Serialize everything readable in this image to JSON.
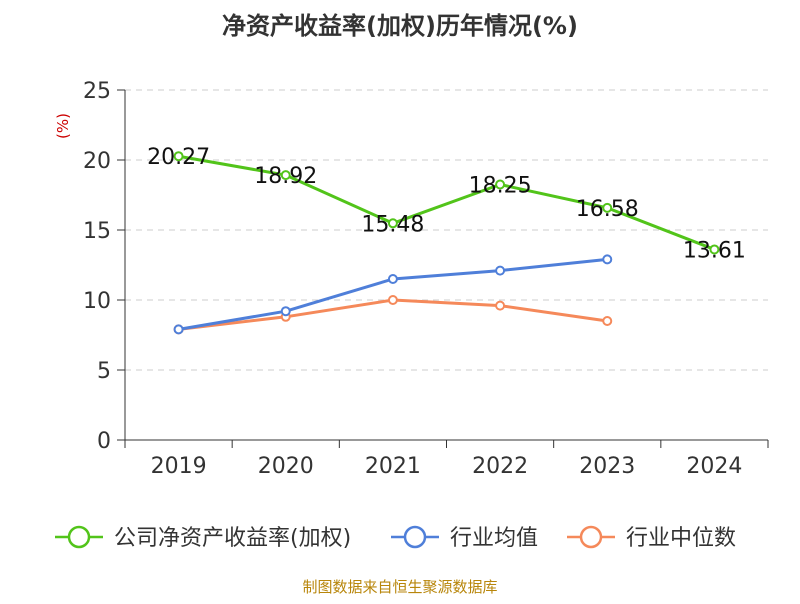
{
  "chart_data": {
    "type": "line",
    "title": "净资产收益率(加权)历年情况(%)",
    "ylabel": "(%)",
    "xlabel": "",
    "categories": [
      "2019",
      "2020",
      "2021",
      "2022",
      "2023",
      "2024"
    ],
    "ylim": [
      0,
      25
    ],
    "yticks": [
      0,
      5,
      10,
      15,
      20,
      25
    ],
    "grid": "horizontal dashed",
    "legend_position": "bottom",
    "series": [
      {
        "name": "公司净资产收益率(加权)",
        "color": "#52c41a",
        "values": [
          20.27,
          18.92,
          15.48,
          18.25,
          16.58,
          13.61
        ],
        "show_labels": true
      },
      {
        "name": "行业均值",
        "color": "#4f7fd9",
        "values": [
          7.9,
          9.2,
          11.5,
          12.1,
          12.9,
          null
        ],
        "show_labels": false
      },
      {
        "name": "行业中位数",
        "color": "#f5895a",
        "values": [
          7.9,
          8.8,
          10.0,
          9.6,
          8.5,
          null
        ],
        "show_labels": false
      }
    ]
  },
  "source_text": "制图数据来自恒生聚源数据库"
}
